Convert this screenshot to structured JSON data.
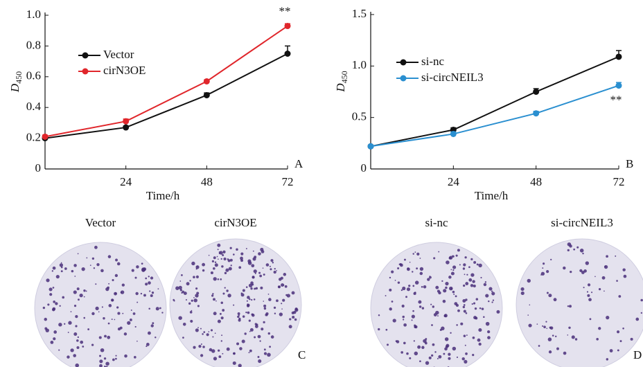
{
  "chart_data": [
    {
      "type": "line",
      "panel": "A",
      "xlabel": "Time/h",
      "ylabel": "D",
      "ylabel_sub": "450",
      "x": [
        0,
        24,
        48,
        72
      ],
      "xlim": [
        0,
        72
      ],
      "xticks": [
        24,
        48,
        72
      ],
      "ylim": [
        0,
        1
      ],
      "yticks": [
        0,
        0.2,
        0.4,
        0.6,
        0.8,
        {
          "value": 1,
          "label": "1.0"
        }
      ],
      "series": [
        {
          "name": "Vector",
          "color": "#111111",
          "values": [
            0.2,
            0.27,
            0.48,
            0.75
          ],
          "errors": [
            0.01,
            0.01,
            0.015,
            0.05
          ]
        },
        {
          "name": "cirN3OE",
          "color": "#e0262b",
          "values": [
            0.21,
            0.31,
            0.57,
            0.93
          ],
          "errors": [
            0.01,
            0.015,
            0.01,
            0.015
          ]
        }
      ],
      "annotation": "**"
    },
    {
      "type": "line",
      "panel": "B",
      "xlabel": "Time/h",
      "ylabel": "D",
      "ylabel_sub": "450",
      "x": [
        0,
        24,
        48,
        72
      ],
      "xlim": [
        0,
        72
      ],
      "xticks": [
        24,
        48,
        72
      ],
      "ylim": [
        0,
        1.5
      ],
      "yticks": [
        0,
        0.5,
        {
          "value": 1,
          "label": "1.0"
        },
        1.5
      ],
      "series": [
        {
          "name": "si-nc",
          "color": "#111111",
          "values": [
            0.22,
            0.38,
            0.75,
            1.09
          ],
          "errors": [
            0.01,
            0.02,
            0.03,
            0.06
          ]
        },
        {
          "name": "si-circNEIL3",
          "color": "#2a8fd0",
          "values": [
            0.22,
            0.34,
            0.54,
            0.81
          ],
          "errors": [
            0.01,
            0.02,
            0.02,
            0.03
          ]
        }
      ],
      "annotation": "**"
    }
  ],
  "images": {
    "panels": [
      "C",
      "D"
    ],
    "labels": [
      "Vector",
      "cirN3OE",
      "si-nc",
      "si-circNEIL3"
    ]
  }
}
